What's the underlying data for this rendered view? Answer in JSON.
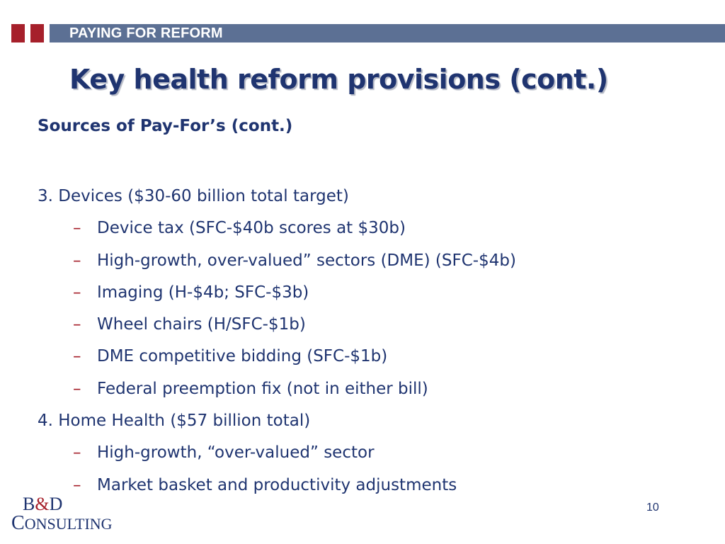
{
  "header": {
    "label": "PAYING FOR REFORM"
  },
  "slide": {
    "title": "Key health reform provisions (cont.)",
    "subtitle": "Sources of Pay-For’s (cont.)",
    "items": [
      {
        "level": 1,
        "text": "3. Devices ($30-60 billion total target)"
      },
      {
        "level": 2,
        "text": "Device tax (SFC-$40b scores at $30b)"
      },
      {
        "level": 2,
        "text": "High-growth, over-valued” sectors  (DME) (SFC-$4b)"
      },
      {
        "level": 2,
        "text": "Imaging (H-$4b; SFC-$3b)"
      },
      {
        "level": 2,
        "text": "Wheel chairs (H/SFC-$1b)"
      },
      {
        "level": 2,
        "text": "DME competitive bidding (SFC-$1b)"
      },
      {
        "level": 2,
        "text": "Federal preemption fix (not in either bill)"
      },
      {
        "level": 1,
        "text": "4. Home Health ($57 billion total)"
      },
      {
        "level": 2,
        "text": "High-growth, “over-valued” sector"
      },
      {
        "level": 2,
        "text": "Market basket and productivity adjustments"
      }
    ],
    "bullet_glyph": "–"
  },
  "footer": {
    "logo": {
      "line1_b": "B",
      "line1_amp": "&",
      "line1_d": "D",
      "line2_c": "C",
      "line2_rest": "ONSULTING"
    },
    "page_number": "10"
  },
  "colors": {
    "accent_red": "#a6202b",
    "navy": "#1f3470",
    "header_bar": "#5c7094"
  }
}
